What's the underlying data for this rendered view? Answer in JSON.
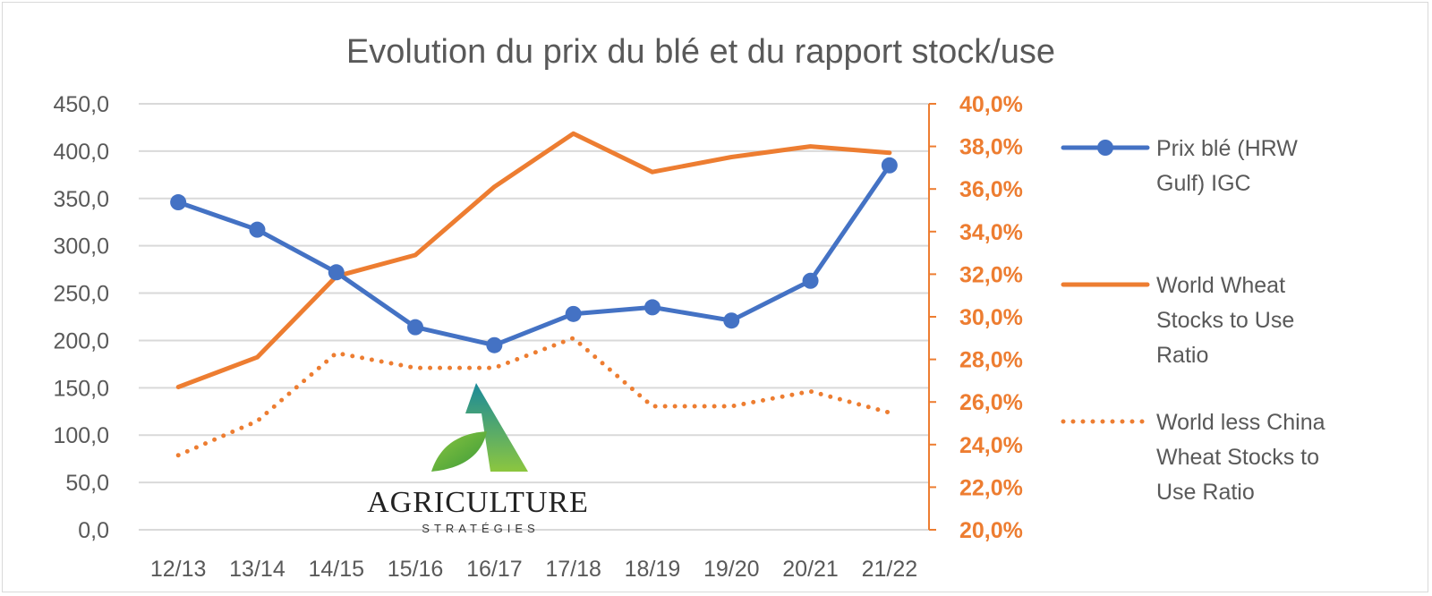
{
  "chart_data": {
    "type": "line",
    "title": "Evolution du prix du blé et du rapport stock/use",
    "categories": [
      "12/13",
      "13/14",
      "14/15",
      "15/16",
      "16/17",
      "17/18",
      "18/19",
      "19/20",
      "20/21",
      "21/22"
    ],
    "y_left": {
      "ylim": [
        0,
        450
      ],
      "ticks": [
        "0,0",
        "50,0",
        "100,0",
        "150,0",
        "200,0",
        "250,0",
        "300,0",
        "350,0",
        "400,0",
        "450,0"
      ]
    },
    "y_right": {
      "ylim": [
        0.2,
        0.4
      ],
      "ticks": [
        "20,0%",
        "22,0%",
        "24,0%",
        "26,0%",
        "28,0%",
        "30,0%",
        "32,0%",
        "34,0%",
        "36,0%",
        "38,0%",
        "40,0%"
      ]
    },
    "grid": true,
    "legend_position": "right",
    "series": [
      {
        "name": "Prix blé (HRW Gulf) IGC",
        "name_lines": [
          "Prix blé (HRW",
          "Gulf) IGC"
        ],
        "axis": "left",
        "style": "solid-markers",
        "color": "#4472c4",
        "values": [
          346,
          317,
          272,
          214,
          195,
          228,
          235,
          221,
          263,
          385
        ]
      },
      {
        "name": "World Wheat Stocks to Use Ratio",
        "name_lines": [
          "World Wheat",
          "Stocks to Use",
          "Ratio"
        ],
        "axis": "right",
        "style": "solid",
        "color": "#ed7d31",
        "values": [
          0.267,
          0.281,
          0.319,
          0.329,
          0.361,
          0.386,
          0.368,
          0.375,
          0.38,
          0.377
        ]
      },
      {
        "name": "World less China Wheat Stocks to Use Ratio",
        "name_lines": [
          "World less China",
          "Wheat Stocks to",
          "Use Ratio"
        ],
        "axis": "right",
        "style": "dotted",
        "color": "#ed7d31",
        "values": [
          0.235,
          0.251,
          0.283,
          0.276,
          0.276,
          0.29,
          0.258,
          0.258,
          0.265,
          0.255
        ]
      }
    ]
  },
  "logo": {
    "main": "AGRICULTURE",
    "sub": "STRATÉGIES",
    "colors": [
      "#1a8a9a",
      "#7bc043"
    ]
  }
}
